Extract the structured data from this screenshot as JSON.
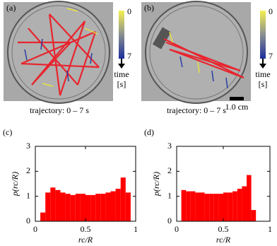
{
  "photos": [
    {
      "label": "(a)",
      "caption": "trajectory: 0 – 7 s",
      "colorbar": {
        "ticks": [
          0,
          7
        ],
        "label": "time",
        "unit": "[s]"
      }
    },
    {
      "label": "(b)",
      "caption": "trajectory: 0 – 7 s",
      "scalebar": "1.0 cm",
      "colorbar": {
        "ticks": [
          0,
          7
        ],
        "label": "time",
        "unit": "[s]"
      }
    }
  ],
  "chart_data": [
    {
      "type": "histogram",
      "title": "(c)",
      "xlabel": "rc/R",
      "ylabel": "p(rc/R)",
      "color": "#ff0000",
      "bins": [
        0.05,
        0.1,
        0.15,
        0.2,
        0.25,
        0.3,
        0.35,
        0.4,
        0.45,
        0.5,
        0.55,
        0.6,
        0.65,
        0.7,
        0.75,
        0.8,
        0.85,
        0.9,
        0.95
      ],
      "values": [
        0.35,
        1.15,
        1.35,
        1.25,
        1.15,
        1.1,
        1.05,
        1.1,
        1.1,
        1.05,
        1.05,
        1.1,
        1.1,
        1.15,
        1.2,
        1.3,
        1.75,
        1.15
      ],
      "xlim": [
        0,
        1
      ],
      "ylim": [
        0,
        3
      ],
      "xticks": [
        0,
        0.5,
        1
      ],
      "yticks": [
        0,
        1,
        2,
        3
      ]
    },
    {
      "type": "histogram",
      "title": "(d)",
      "xlabel": "rc/R",
      "ylabel": "p(rc/R)",
      "color": "#ff0000",
      "bins": [
        0.05,
        0.1,
        0.15,
        0.2,
        0.25,
        0.3,
        0.35,
        0.4,
        0.45,
        0.5,
        0.55,
        0.6,
        0.65,
        0.7,
        0.75,
        0.8,
        0.85
      ],
      "values": [
        1.25,
        1.2,
        1.2,
        1.15,
        1.15,
        1.1,
        1.1,
        1.1,
        1.1,
        1.15,
        1.15,
        1.2,
        1.3,
        1.4,
        1.85,
        0.45
      ],
      "xlim": [
        0,
        1
      ],
      "ylim": [
        0,
        3
      ],
      "xticks": [
        0,
        0.5,
        1
      ],
      "yticks": [
        0,
        1,
        2,
        3
      ]
    }
  ]
}
